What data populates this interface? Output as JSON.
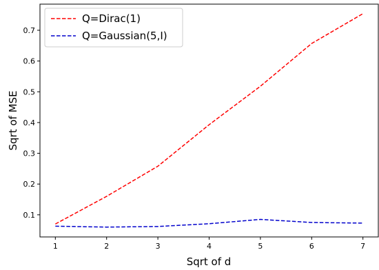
{
  "chart_data": {
    "type": "line",
    "title": "",
    "xlabel": "Sqrt of d",
    "ylabel": "Sqrt of MSE",
    "x": [
      1,
      2,
      3,
      4,
      5,
      6,
      7
    ],
    "xticks": [
      "1",
      "2",
      "3",
      "4",
      "5",
      "6",
      "7"
    ],
    "yticks": [
      "0.1",
      "0.2",
      "0.3",
      "0.4",
      "0.5",
      "0.6",
      "0.7"
    ],
    "xlim": [
      0.7,
      7.3
    ],
    "ylim": [
      0.028,
      0.785
    ],
    "grid": false,
    "legend_position": "top-left",
    "series": [
      {
        "name": "Q=Dirac(1)",
        "color": "#ff0000",
        "linestyle": "dashed",
        "values": [
          0.07,
          0.16,
          0.258,
          0.393,
          0.518,
          0.657,
          0.754
        ]
      },
      {
        "name": "Q=Gaussian(5,I)",
        "color": "#0000cc",
        "linestyle": "dashed",
        "values": [
          0.063,
          0.06,
          0.062,
          0.071,
          0.085,
          0.075,
          0.073
        ]
      }
    ]
  }
}
